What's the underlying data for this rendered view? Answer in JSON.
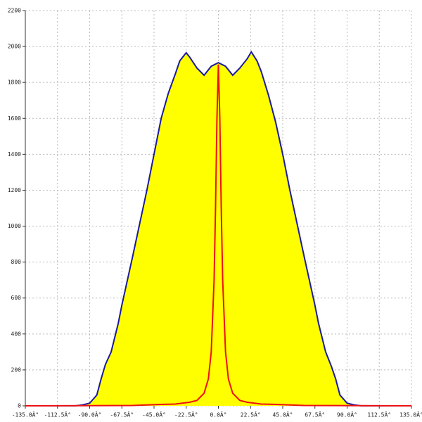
{
  "chart_data": {
    "type": "area",
    "xlim": [
      -135,
      135
    ],
    "ylim": [
      0,
      2200
    ],
    "xticks": [
      {
        "value": -135,
        "label": "-135.0Â°"
      },
      {
        "value": -112.5,
        "label": "-112.5Â°"
      },
      {
        "value": -90,
        "label": "-90.0Â°"
      },
      {
        "value": -67.5,
        "label": "-67.5Â°"
      },
      {
        "value": -45,
        "label": "-45.0Â°"
      },
      {
        "value": -22.5,
        "label": "-22.5Â°"
      },
      {
        "value": 0,
        "label": "0.0Â°"
      },
      {
        "value": 22.5,
        "label": "22.5Â°"
      },
      {
        "value": 45,
        "label": "45.0Â°"
      },
      {
        "value": 67.5,
        "label": "67.5Â°"
      },
      {
        "value": 90,
        "label": "90.0Â°"
      },
      {
        "value": 112.5,
        "label": "112.5Â°"
      },
      {
        "value": 135,
        "label": "135.0Â°"
      }
    ],
    "yticks": [
      0,
      200,
      400,
      600,
      800,
      1000,
      1200,
      1400,
      1600,
      1800,
      2000,
      2200
    ],
    "grid": true,
    "series": [
      {
        "color": "#1a1aa0",
        "fill": "#ffff00",
        "x": [
          -135,
          -100,
          -95,
          -90,
          -85,
          -82,
          -79,
          -75,
          -70,
          -67.5,
          -60,
          -50,
          -45,
          -40,
          -35,
          -30,
          -27,
          -22.5,
          -20,
          -15,
          -10,
          -5,
          0,
          5,
          10,
          15,
          20,
          23,
          27,
          30,
          35,
          40,
          45,
          50,
          60,
          67.5,
          70,
          75,
          79,
          82,
          85,
          90,
          95,
          100,
          135
        ],
        "values": [
          0,
          0,
          5,
          15,
          60,
          150,
          230,
          300,
          460,
          560,
          830,
          1200,
          1400,
          1600,
          1740,
          1850,
          1920,
          1965,
          1940,
          1880,
          1840,
          1890,
          1910,
          1890,
          1840,
          1880,
          1930,
          1970,
          1920,
          1860,
          1730,
          1580,
          1400,
          1200,
          830,
          560,
          460,
          300,
          220,
          150,
          60,
          15,
          5,
          0,
          0
        ]
      },
      {
        "color": "#ee1111",
        "x": [
          -135,
          -60,
          -40,
          -30,
          -20,
          -15,
          -10,
          -7,
          -5,
          -3,
          -2,
          -1,
          0,
          1,
          2,
          3,
          5,
          7,
          10,
          15,
          20,
          30,
          40,
          60,
          135
        ],
        "values": [
          0,
          2,
          8,
          10,
          20,
          30,
          70,
          150,
          300,
          700,
          1100,
          1600,
          1900,
          1600,
          1100,
          700,
          300,
          150,
          70,
          30,
          20,
          10,
          8,
          2,
          0
        ]
      }
    ]
  }
}
